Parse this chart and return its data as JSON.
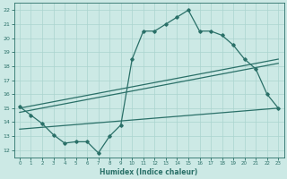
{
  "xlabel": "Humidex (Indice chaleur)",
  "ylabel": "",
  "bg_color": "#cce9e5",
  "grid_color": "#aad4cf",
  "line_color": "#2a7068",
  "xlim": [
    -0.5,
    23.5
  ],
  "ylim": [
    11.5,
    22.5
  ],
  "xticks": [
    0,
    1,
    2,
    3,
    4,
    5,
    6,
    7,
    8,
    9,
    10,
    11,
    12,
    13,
    14,
    15,
    16,
    17,
    18,
    19,
    20,
    21,
    22,
    23
  ],
  "yticks": [
    12,
    13,
    14,
    15,
    16,
    17,
    18,
    19,
    20,
    21,
    22
  ],
  "curve1_x": [
    0,
    1,
    2,
    3,
    4,
    5,
    6,
    7,
    8,
    9,
    10,
    11,
    12,
    13,
    14,
    15,
    16,
    17,
    18,
    19,
    20,
    21,
    22,
    23
  ],
  "curve1_y": [
    15.1,
    14.5,
    13.9,
    13.1,
    12.5,
    12.6,
    12.6,
    11.8,
    13.0,
    13.8,
    18.5,
    20.5,
    20.5,
    21.0,
    21.5,
    22.0,
    20.5,
    20.5,
    20.2,
    19.5,
    18.5,
    17.8,
    16.0,
    15.0
  ],
  "line2_x": [
    0,
    23
  ],
  "line2_y": [
    15.0,
    18.5
  ],
  "line3_x": [
    0,
    23
  ],
  "line3_y": [
    14.7,
    18.2
  ],
  "line4_x": [
    0,
    23
  ],
  "line4_y": [
    13.5,
    15.0
  ]
}
